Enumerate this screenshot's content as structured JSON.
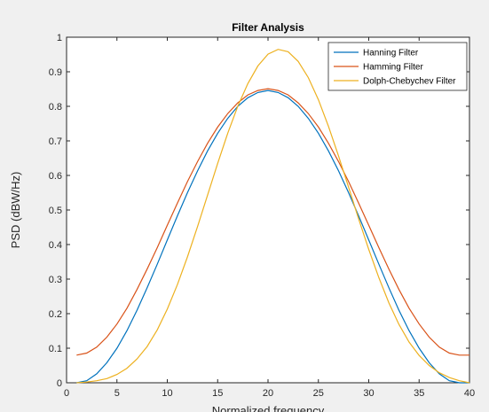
{
  "chart_data": {
    "type": "line",
    "title": "Filter Analysis",
    "xlabel": "Normalized frequency",
    "ylabel": "PSD (dBW/Hz)",
    "xlim": [
      0,
      40
    ],
    "ylim": [
      0,
      1
    ],
    "xticks": [
      0,
      5,
      10,
      15,
      20,
      25,
      30,
      35,
      40
    ],
    "yticks": [
      0,
      0.1,
      0.2,
      0.3,
      0.4,
      0.5,
      0.6,
      0.7,
      0.8,
      0.9,
      1
    ],
    "grid": false,
    "legend_location": "top-right",
    "x": [
      1,
      2,
      3,
      4,
      5,
      6,
      7,
      8,
      9,
      10,
      11,
      12,
      13,
      14,
      15,
      16,
      17,
      18,
      19,
      20,
      21,
      22,
      23,
      24,
      25,
      26,
      27,
      28,
      29,
      30,
      31,
      32,
      33,
      34,
      35,
      36,
      37,
      38,
      39,
      40
    ],
    "series": [
      {
        "name": "Hanning Filter",
        "color": "#0072bd",
        "values": [
          0.0,
          0.006,
          0.026,
          0.058,
          0.1,
          0.151,
          0.21,
          0.275,
          0.343,
          0.413,
          0.483,
          0.55,
          0.613,
          0.671,
          0.722,
          0.765,
          0.8,
          0.825,
          0.84,
          0.846,
          0.84,
          0.825,
          0.8,
          0.765,
          0.722,
          0.671,
          0.613,
          0.55,
          0.483,
          0.413,
          0.343,
          0.275,
          0.21,
          0.151,
          0.1,
          0.058,
          0.026,
          0.006,
          0.0,
          0.0
        ]
      },
      {
        "name": "Hamming Filter",
        "color": "#d95319",
        "values": [
          0.08,
          0.086,
          0.103,
          0.132,
          0.17,
          0.216,
          0.27,
          0.329,
          0.391,
          0.456,
          0.52,
          0.582,
          0.64,
          0.693,
          0.74,
          0.779,
          0.81,
          0.833,
          0.846,
          0.851,
          0.846,
          0.833,
          0.81,
          0.779,
          0.74,
          0.693,
          0.64,
          0.582,
          0.52,
          0.456,
          0.391,
          0.329,
          0.27,
          0.216,
          0.17,
          0.132,
          0.103,
          0.086,
          0.08,
          0.08
        ]
      },
      {
        "name": "Dolph-Chebychev Filter",
        "color": "#edb120",
        "values": [
          0.0,
          0.002,
          0.006,
          0.012,
          0.024,
          0.042,
          0.069,
          0.105,
          0.153,
          0.213,
          0.284,
          0.364,
          0.452,
          0.543,
          0.635,
          0.722,
          0.8,
          0.866,
          0.917,
          0.951,
          0.965,
          0.958,
          0.93,
          0.883,
          0.819,
          0.742,
          0.656,
          0.566,
          0.474,
          0.386,
          0.304,
          0.231,
          0.169,
          0.118,
          0.079,
          0.05,
          0.029,
          0.015,
          0.006,
          0.0
        ]
      }
    ]
  }
}
